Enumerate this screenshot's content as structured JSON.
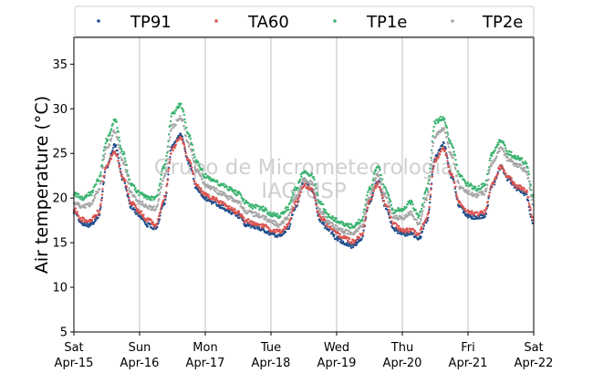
{
  "chart_data": {
    "type": "scatter",
    "title": "",
    "xlabel": "",
    "ylabel": "Air temperature (°C)",
    "ylim": [
      5,
      38
    ],
    "yticks": [
      5,
      10,
      15,
      20,
      25,
      30,
      35
    ],
    "xlim": [
      "2019-04-15 00:00",
      "2019-04-22 00:00"
    ],
    "xticks": [
      {
        "day": "Sat",
        "date": "Apr-15"
      },
      {
        "day": "Sun",
        "date": "Apr-16"
      },
      {
        "day": "Mon",
        "date": "Apr-17"
      },
      {
        "day": "Tue",
        "date": "Apr-18"
      },
      {
        "day": "Wed",
        "date": "Apr-19"
      },
      {
        "day": "Thu",
        "date": "Apr-20"
      },
      {
        "day": "Fri",
        "date": "Apr-21"
      },
      {
        "day": "Sat",
        "date": "Apr-22"
      }
    ],
    "grid": "vertical at day ticks",
    "legend_position": "top, outside plot, one row",
    "watermark": [
      "Grupo de Micrometeorologia",
      "IAG-USP"
    ],
    "series": [
      {
        "name": "TP91",
        "color": "#1f4e8c",
        "x": [
          "2019-04-15 00:00",
          "2019-04-15 03:00",
          "2019-04-15 06:00",
          "2019-04-15 09:00",
          "2019-04-15 12:00",
          "2019-04-15 15:00",
          "2019-04-15 18:00",
          "2019-04-15 21:00",
          "2019-04-16 00:00",
          "2019-04-16 03:00",
          "2019-04-16 06:00",
          "2019-04-16 09:00",
          "2019-04-16 12:00",
          "2019-04-16 15:00",
          "2019-04-16 18:00",
          "2019-04-16 21:00",
          "2019-04-17 00:00",
          "2019-04-17 03:00",
          "2019-04-17 06:00",
          "2019-04-17 09:00",
          "2019-04-17 12:00",
          "2019-04-17 15:00",
          "2019-04-17 18:00",
          "2019-04-17 21:00",
          "2019-04-18 00:00",
          "2019-04-18 03:00",
          "2019-04-18 06:00",
          "2019-04-18 09:00",
          "2019-04-18 12:00",
          "2019-04-18 15:00",
          "2019-04-18 18:00",
          "2019-04-18 21:00",
          "2019-04-19 00:00",
          "2019-04-19 03:00",
          "2019-04-19 06:00",
          "2019-04-19 09:00",
          "2019-04-19 12:00",
          "2019-04-19 15:00",
          "2019-04-19 18:00",
          "2019-04-19 21:00",
          "2019-04-20 00:00",
          "2019-04-20 03:00",
          "2019-04-20 06:00",
          "2019-04-20 09:00",
          "2019-04-20 12:00",
          "2019-04-20 15:00",
          "2019-04-20 18:00",
          "2019-04-20 21:00",
          "2019-04-21 00:00",
          "2019-04-21 03:00",
          "2019-04-21 06:00",
          "2019-04-21 09:00",
          "2019-04-21 12:00",
          "2019-04-21 15:00",
          "2019-04-21 18:00",
          "2019-04-21 21:00",
          "2019-04-22 00:00"
        ],
        "y": [
          18.5,
          17.2,
          17.0,
          18.0,
          23.5,
          26.0,
          22.0,
          19.0,
          18.0,
          17.0,
          16.5,
          19.5,
          26.0,
          27.0,
          24.0,
          21.0,
          20.0,
          19.5,
          19.0,
          18.5,
          18.0,
          17.0,
          16.8,
          16.5,
          16.0,
          15.8,
          16.5,
          19.0,
          22.0,
          21.0,
          17.5,
          16.5,
          15.5,
          15.0,
          14.6,
          15.5,
          19.5,
          22.0,
          19.0,
          16.5,
          16.0,
          16.0,
          15.5,
          17.5,
          24.5,
          26.0,
          22.5,
          19.0,
          18.0,
          17.8,
          18.0,
          21.5,
          23.5,
          22.0,
          21.0,
          20.5,
          17.0
        ]
      },
      {
        "name": "TA60",
        "color": "#d9534f",
        "x": [
          "2019-04-15 00:00",
          "2019-04-15 03:00",
          "2019-04-15 06:00",
          "2019-04-15 09:00",
          "2019-04-15 12:00",
          "2019-04-15 15:00",
          "2019-04-15 18:00",
          "2019-04-15 21:00",
          "2019-04-16 00:00",
          "2019-04-16 03:00",
          "2019-04-16 06:00",
          "2019-04-16 09:00",
          "2019-04-16 12:00",
          "2019-04-16 15:00",
          "2019-04-16 18:00",
          "2019-04-16 21:00",
          "2019-04-17 00:00",
          "2019-04-17 03:00",
          "2019-04-17 06:00",
          "2019-04-17 09:00",
          "2019-04-17 12:00",
          "2019-04-17 15:00",
          "2019-04-17 18:00",
          "2019-04-17 21:00",
          "2019-04-18 00:00",
          "2019-04-18 03:00",
          "2019-04-18 06:00",
          "2019-04-18 09:00",
          "2019-04-18 12:00",
          "2019-04-18 15:00",
          "2019-04-18 18:00",
          "2019-04-18 21:00",
          "2019-04-19 00:00",
          "2019-04-19 03:00",
          "2019-04-19 06:00",
          "2019-04-19 09:00",
          "2019-04-19 12:00",
          "2019-04-19 15:00",
          "2019-04-19 18:00",
          "2019-04-19 21:00",
          "2019-04-20 00:00",
          "2019-04-20 03:00",
          "2019-04-20 06:00",
          "2019-04-20 09:00",
          "2019-04-20 12:00",
          "2019-04-20 15:00",
          "2019-04-20 18:00",
          "2019-04-20 21:00",
          "2019-04-21 00:00",
          "2019-04-21 03:00",
          "2019-04-21 06:00",
          "2019-04-21 09:00",
          "2019-04-21 12:00",
          "2019-04-21 15:00",
          "2019-04-21 18:00",
          "2019-04-21 21:00",
          "2019-04-22 00:00"
        ],
        "y": [
          18.8,
          17.6,
          17.4,
          18.4,
          23.8,
          25.2,
          22.3,
          19.4,
          18.5,
          17.5,
          17.0,
          20.0,
          25.5,
          26.8,
          24.2,
          21.3,
          20.4,
          19.9,
          19.4,
          18.9,
          18.3,
          17.4,
          17.2,
          16.9,
          16.4,
          16.2,
          16.9,
          19.4,
          21.5,
          20.9,
          17.9,
          17.0,
          16.0,
          15.5,
          15.1,
          15.9,
          19.6,
          21.6,
          19.3,
          17.0,
          16.4,
          16.4,
          16.0,
          17.8,
          24.2,
          25.6,
          22.7,
          19.4,
          18.4,
          18.2,
          18.4,
          21.6,
          23.5,
          22.2,
          21.3,
          20.9,
          17.6
        ]
      },
      {
        "name": "TP1e",
        "color": "#3cb371",
        "x": [
          "2019-04-15 00:00",
          "2019-04-15 03:00",
          "2019-04-15 06:00",
          "2019-04-15 09:00",
          "2019-04-15 12:00",
          "2019-04-15 15:00",
          "2019-04-15 18:00",
          "2019-04-15 21:00",
          "2019-04-16 00:00",
          "2019-04-16 03:00",
          "2019-04-16 06:00",
          "2019-04-16 09:00",
          "2019-04-16 12:00",
          "2019-04-16 15:00",
          "2019-04-16 18:00",
          "2019-04-16 21:00",
          "2019-04-17 00:00",
          "2019-04-17 03:00",
          "2019-04-17 06:00",
          "2019-04-17 09:00",
          "2019-04-17 12:00",
          "2019-04-17 15:00",
          "2019-04-17 18:00",
          "2019-04-17 21:00",
          "2019-04-18 00:00",
          "2019-04-18 03:00",
          "2019-04-18 06:00",
          "2019-04-18 09:00",
          "2019-04-18 12:00",
          "2019-04-18 15:00",
          "2019-04-18 18:00",
          "2019-04-18 21:00",
          "2019-04-19 00:00",
          "2019-04-19 03:00",
          "2019-04-19 06:00",
          "2019-04-19 09:00",
          "2019-04-19 12:00",
          "2019-04-19 15:00",
          "2019-04-19 18:00",
          "2019-04-19 21:00",
          "2019-04-20 00:00",
          "2019-04-20 03:00",
          "2019-04-20 06:00",
          "2019-04-20 09:00",
          "2019-04-20 12:00",
          "2019-04-20 15:00",
          "2019-04-20 18:00",
          "2019-04-20 21:00",
          "2019-04-21 00:00",
          "2019-04-21 03:00",
          "2019-04-21 06:00",
          "2019-04-21 09:00",
          "2019-04-21 12:00",
          "2019-04-21 15:00",
          "2019-04-21 18:00",
          "2019-04-21 21:00",
          "2019-04-22 00:00"
        ],
        "y": [
          20.5,
          20.0,
          20.5,
          22.0,
          26.5,
          28.8,
          25.0,
          21.5,
          20.5,
          20.0,
          20.0,
          23.5,
          29.5,
          30.5,
          27.0,
          24.0,
          22.5,
          22.0,
          21.5,
          21.0,
          20.5,
          19.5,
          19.0,
          18.8,
          18.2,
          18.0,
          18.8,
          21.0,
          23.0,
          22.5,
          19.5,
          18.0,
          17.5,
          17.0,
          16.8,
          17.5,
          21.0,
          23.5,
          21.0,
          18.5,
          18.8,
          19.5,
          18.0,
          21.0,
          28.5,
          29.0,
          26.0,
          22.5,
          21.5,
          21.0,
          21.5,
          25.0,
          26.5,
          25.0,
          24.5,
          24.0,
          20.0
        ]
      },
      {
        "name": "TP2e",
        "color": "#a6a6a6",
        "x": [
          "2019-04-15 00:00",
          "2019-04-15 03:00",
          "2019-04-15 06:00",
          "2019-04-15 09:00",
          "2019-04-15 12:00",
          "2019-04-15 15:00",
          "2019-04-15 18:00",
          "2019-04-15 21:00",
          "2019-04-16 00:00",
          "2019-04-16 03:00",
          "2019-04-16 06:00",
          "2019-04-16 09:00",
          "2019-04-16 12:00",
          "2019-04-16 15:00",
          "2019-04-16 18:00",
          "2019-04-16 21:00",
          "2019-04-17 00:00",
          "2019-04-17 03:00",
          "2019-04-17 06:00",
          "2019-04-17 09:00",
          "2019-04-17 12:00",
          "2019-04-17 15:00",
          "2019-04-17 18:00",
          "2019-04-17 21:00",
          "2019-04-18 00:00",
          "2019-04-18 03:00",
          "2019-04-18 06:00",
          "2019-04-18 09:00",
          "2019-04-18 12:00",
          "2019-04-18 15:00",
          "2019-04-18 18:00",
          "2019-04-18 21:00",
          "2019-04-19 00:00",
          "2019-04-19 03:00",
          "2019-04-19 06:00",
          "2019-04-19 09:00",
          "2019-04-19 12:00",
          "2019-04-19 15:00",
          "2019-04-19 18:00",
          "2019-04-19 21:00",
          "2019-04-20 00:00",
          "2019-04-20 03:00",
          "2019-04-20 06:00",
          "2019-04-20 09:00",
          "2019-04-20 12:00",
          "2019-04-20 15:00",
          "2019-04-20 18:00",
          "2019-04-20 21:00",
          "2019-04-21 00:00",
          "2019-04-21 03:00",
          "2019-04-21 06:00",
          "2019-04-21 09:00",
          "2019-04-21 12:00",
          "2019-04-21 15:00",
          "2019-04-21 18:00",
          "2019-04-21 21:00",
          "2019-04-22 00:00"
        ],
        "y": [
          19.5,
          19.0,
          19.3,
          20.8,
          25.5,
          27.5,
          24.0,
          20.5,
          19.5,
          19.0,
          18.8,
          22.3,
          28.0,
          29.0,
          26.0,
          23.0,
          21.5,
          21.0,
          20.5,
          20.0,
          19.5,
          18.5,
          18.2,
          17.9,
          17.3,
          17.0,
          17.8,
          20.0,
          22.0,
          21.7,
          18.6,
          17.3,
          16.7,
          16.2,
          16.0,
          16.8,
          20.2,
          22.5,
          20.2,
          17.8,
          17.8,
          18.3,
          17.2,
          20.0,
          27.0,
          27.8,
          24.8,
          21.3,
          20.6,
          20.3,
          20.6,
          24.0,
          25.5,
          24.2,
          23.7,
          23.2,
          19.3
        ]
      }
    ]
  }
}
